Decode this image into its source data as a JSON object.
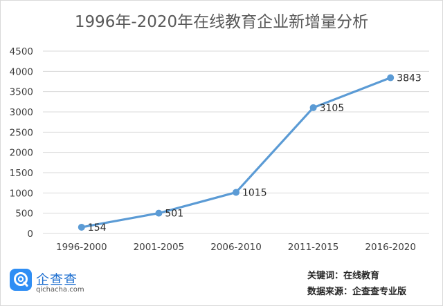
{
  "chart_data": {
    "type": "line",
    "title": "1996年-2020年在线教育企业新增量分析",
    "categories": [
      "1996-2000",
      "2001-2005",
      "2006-2010",
      "2011-2015",
      "2016-2020"
    ],
    "series": [
      {
        "values": [
          154,
          501,
          1015,
          3105,
          3843
        ],
        "color": "#5b9bd5"
      }
    ],
    "data_labels": [
      "154",
      "501",
      "1015",
      "3105",
      "3843"
    ],
    "yticks": [
      "0",
      "500",
      "1000",
      "1500",
      "2000",
      "2500",
      "3000",
      "3500",
      "4000",
      "4500"
    ],
    "ylim": [
      0,
      4500
    ],
    "grid": true
  },
  "footer": {
    "logo_name": "企查查",
    "logo_domain": "qichacha.com",
    "keywords": "关键词：在线教育",
    "source": "数据来源：企查查专业版"
  }
}
